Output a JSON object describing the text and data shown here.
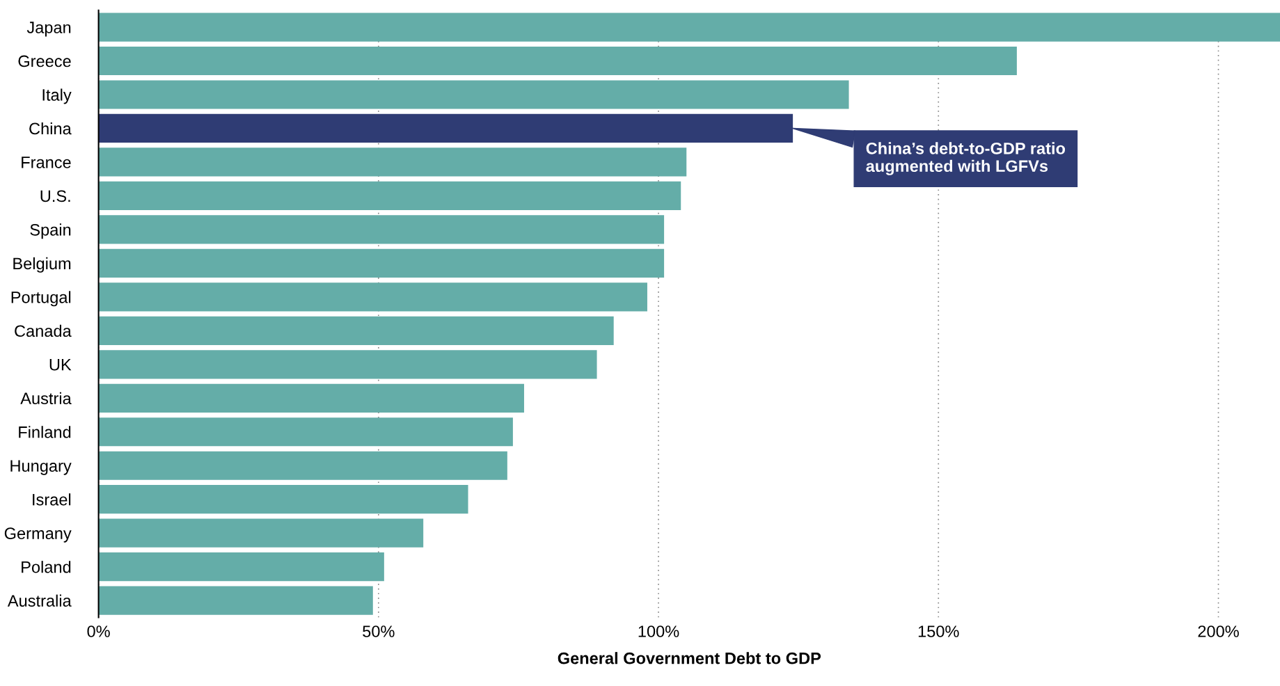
{
  "chart_data": {
    "type": "bar",
    "orientation": "horizontal",
    "xlabel": "General Government Debt to GDP",
    "categories": [
      "Japan",
      "Greece",
      "Italy",
      "China",
      "France",
      "U.S.",
      "Spain",
      "Belgium",
      "Portugal",
      "Canada",
      "UK",
      "Austria",
      "Finland",
      "Hungary",
      "Israel",
      "Germany",
      "Poland",
      "Australia"
    ],
    "values": [
      211,
      164,
      134,
      124,
      105,
      104,
      101,
      101,
      98,
      92,
      89,
      76,
      74,
      73,
      66,
      58,
      51,
      49
    ],
    "colors": [
      "#64ada8",
      "#64ada8",
      "#64ada8",
      "#2f3c74",
      "#64ada8",
      "#64ada8",
      "#64ada8",
      "#64ada8",
      "#64ada8",
      "#64ada8",
      "#64ada8",
      "#64ada8",
      "#64ada8",
      "#64ada8",
      "#64ada8",
      "#64ada8",
      "#64ada8",
      "#64ada8"
    ],
    "xlim": [
      0,
      211
    ],
    "xticks": [
      {
        "value": 0,
        "label": "0%"
      },
      {
        "value": 50,
        "label": "50%"
      },
      {
        "value": 100,
        "label": "100%"
      },
      {
        "value": 150,
        "label": "150%"
      },
      {
        "value": 200,
        "label": "200%"
      }
    ],
    "grid": "x",
    "annotations": [
      {
        "text": "China’s debt-to-GDP ratio\naugmented with LGFVs",
        "x": 124,
        "y": "China"
      }
    ]
  }
}
